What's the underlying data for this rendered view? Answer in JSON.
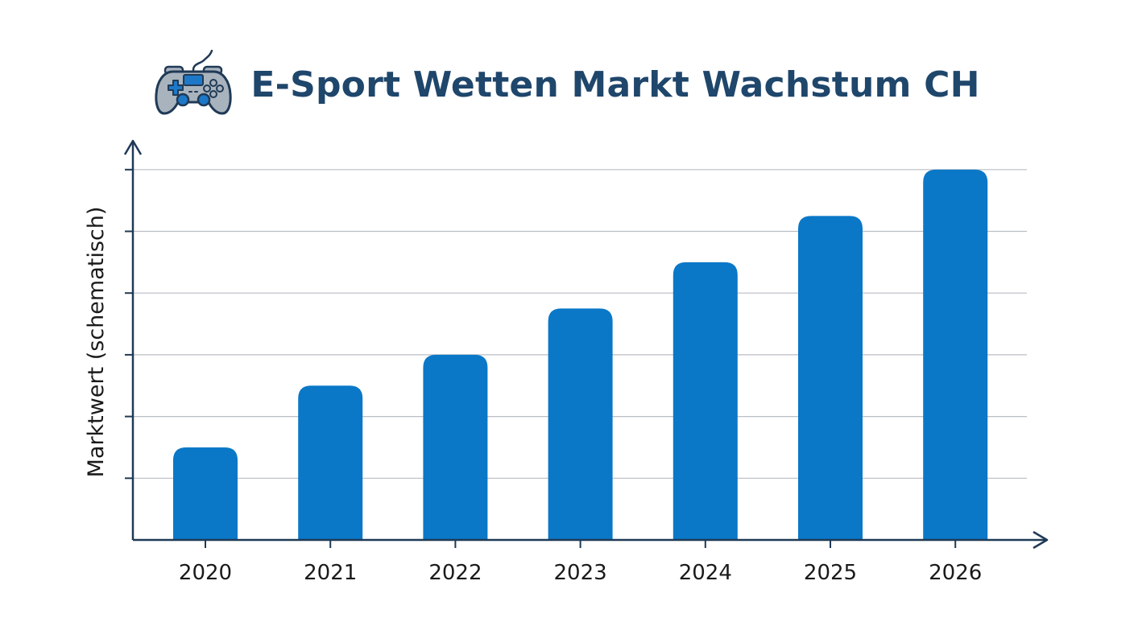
{
  "header": {
    "title": "E-Sport Wetten Markt Wachstum CH",
    "icon": "gamepad-icon"
  },
  "colors": {
    "bar": "#0a78c7",
    "axis": "#1f3a56",
    "grid": "#b9bec5",
    "title": "#1f466b",
    "icon_body": "#a9b3bd",
    "icon_stroke": "#1f3a56",
    "icon_accent": "#1e78c8"
  },
  "chart_data": {
    "type": "bar",
    "title": "E-Sport Wetten Markt Wachstum CH",
    "xlabel": "",
    "ylabel": "Marktwert (schematisch)",
    "categories": [
      "2020",
      "2021",
      "2022",
      "2023",
      "2024",
      "2025",
      "2026"
    ],
    "values": [
      1.5,
      2.5,
      3.0,
      3.75,
      4.5,
      5.25,
      6.0
    ],
    "ylim": [
      0,
      6.5
    ],
    "y_tick_values": [
      1,
      2,
      3,
      4,
      5,
      6
    ],
    "y_tick_labels_shown": false,
    "grid": true,
    "legend": "none"
  }
}
